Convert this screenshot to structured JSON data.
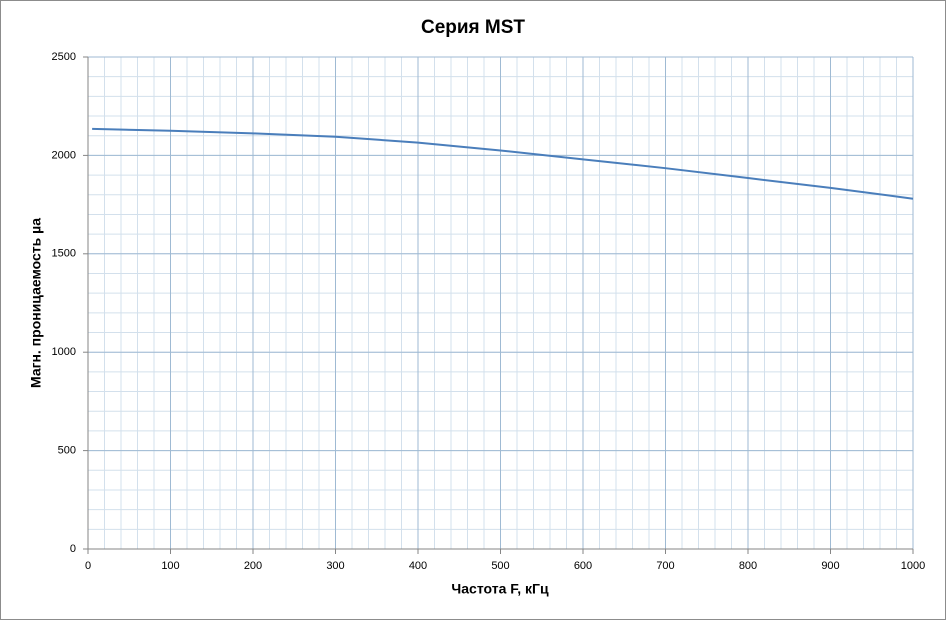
{
  "chart_data": {
    "type": "line",
    "title": "Серия MST",
    "x_label": "Частота F, кГц",
    "y_label": "Магн. проницаемость µa",
    "x": [
      5,
      100,
      200,
      300,
      400,
      500,
      600,
      700,
      800,
      900,
      1000
    ],
    "series": [
      {
        "name": "MST",
        "color": "#4a7ebb",
        "values": [
          2135,
          2125,
          2112,
          2095,
          2065,
          2025,
          1980,
          1935,
          1885,
          1835,
          1780
        ]
      }
    ],
    "xlim": [
      0,
      1000
    ],
    "xticks": [
      0,
      100,
      200,
      300,
      400,
      500,
      600,
      700,
      800,
      900,
      1000
    ],
    "ylim": [
      0,
      2500
    ],
    "yticks": [
      0,
      500,
      1000,
      1500,
      2000,
      2500
    ],
    "grid": true,
    "xminor": 20,
    "yminor": 100
  }
}
